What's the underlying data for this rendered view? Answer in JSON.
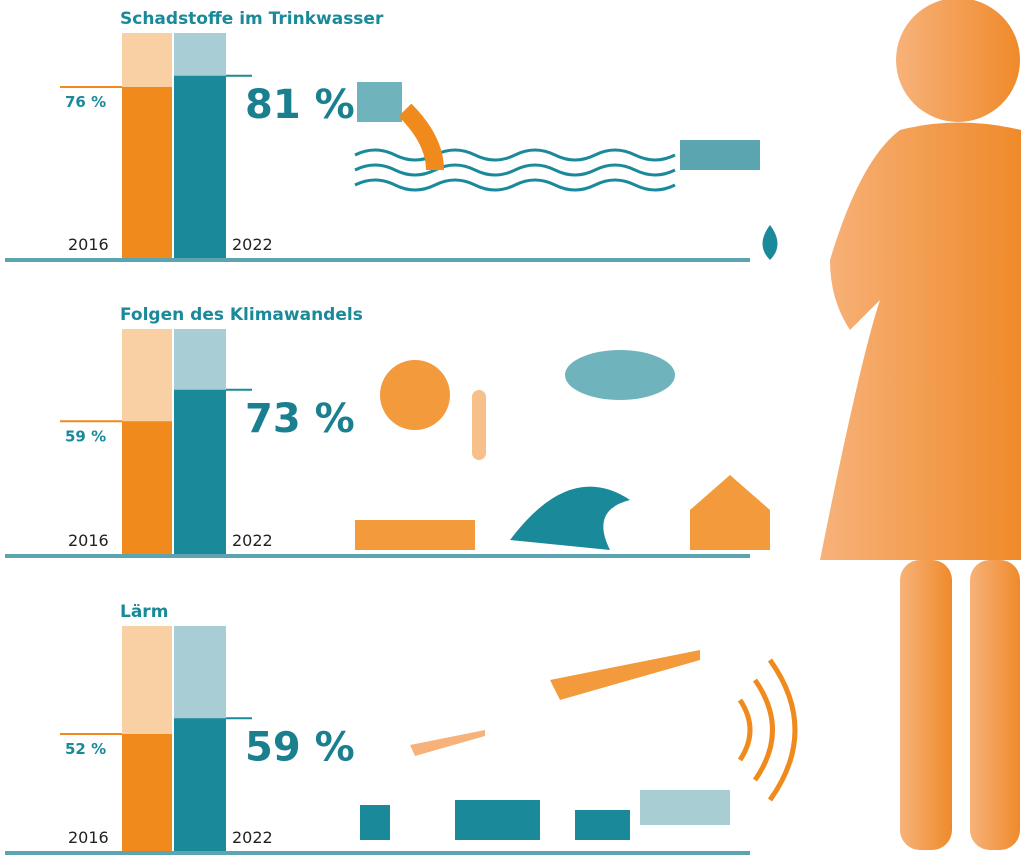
{
  "chart_data": [
    {
      "type": "bar",
      "title": "Schadstoffe im Trinkwasser",
      "categories": [
        "2016",
        "2022"
      ],
      "values": [
        76,
        81
      ],
      "value_labels": [
        "76 %",
        "81 %"
      ],
      "colors": [
        "#f08a1c",
        "#1a8a9a"
      ],
      "ylim": [
        0,
        100
      ]
    },
    {
      "type": "bar",
      "title": "Folgen des Klimawandels",
      "categories": [
        "2016",
        "2022"
      ],
      "values": [
        59,
        73
      ],
      "value_labels": [
        "59 %",
        "73 %"
      ],
      "colors": [
        "#f08a1c",
        "#1a8a9a"
      ],
      "ylim": [
        0,
        100
      ]
    },
    {
      "type": "bar",
      "title": "Lärm",
      "categories": [
        "2016",
        "2022"
      ],
      "values": [
        52,
        59
      ],
      "value_labels": [
        "52 %",
        "59 %"
      ],
      "colors": [
        "#f08a1c",
        "#1a8a9a"
      ],
      "ylim": [
        0,
        100
      ]
    }
  ]
}
